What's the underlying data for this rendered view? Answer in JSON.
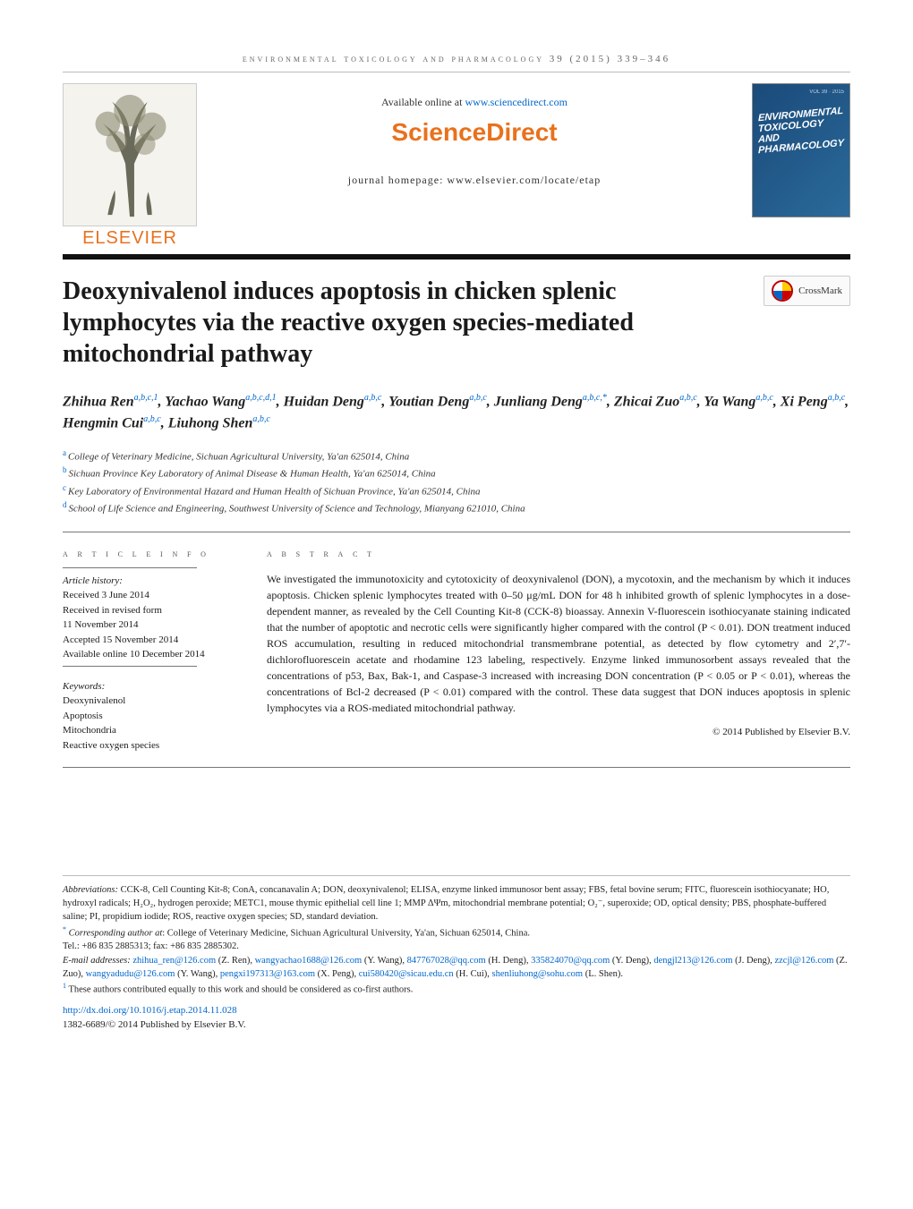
{
  "running_head": "environmental toxicology and pharmacology 39 (2015) 339–346",
  "header": {
    "available_prefix": "Available online at ",
    "available_link": "www.sciencedirect.com",
    "brand": "ScienceDirect",
    "journal_home": "journal homepage: www.elsevier.com/locate/etap",
    "elsevier": "ELSEVIER",
    "journal_cover_title": "ENVIRONMENTAL TOXICOLOGY AND PHARMACOLOGY"
  },
  "crossmark": "CrossMark",
  "title": "Deoxynivalenol induces apoptosis in chicken splenic lymphocytes via the reactive oxygen species-mediated mitochondrial pathway",
  "authors_html": "Zhihua Ren<sup>a,b,c,1</sup>, Yachao Wang<sup>a,b,c,d,1</sup>, Huidan Deng<sup>a,b,c</sup>, Youtian Deng<sup>a,b,c</sup>, Junliang Deng<sup>a,b,c,<span class='star'>*</span></sup>, Zhicai Zuo<sup>a,b,c</sup>, Ya Wang<sup>a,b,c</sup>, Xi Peng<sup>a,b,c</sup>, Hengmin Cui<sup>a,b,c</sup>, Liuhong Shen<sup>a,b,c</sup>",
  "affiliations": [
    {
      "label": "a",
      "text": "College of Veterinary Medicine, Sichuan Agricultural University, Ya'an 625014, China"
    },
    {
      "label": "b",
      "text": "Sichuan Province Key Laboratory of Animal Disease & Human Health, Ya'an 625014, China"
    },
    {
      "label": "c",
      "text": "Key Laboratory of Environmental Hazard and Human Health of Sichuan Province, Ya'an 625014, China"
    },
    {
      "label": "d",
      "text": "School of Life Science and Engineering, Southwest University of Science and Technology, Mianyang 621010, China"
    }
  ],
  "info": {
    "section_head": "a r t i c l e   i n f o",
    "history_head": "Article history:",
    "history": [
      "Received 3 June 2014",
      "Received in revised form",
      "11 November 2014",
      "Accepted 15 November 2014",
      "Available online 10 December 2014"
    ],
    "keywords_head": "Keywords:",
    "keywords": [
      "Deoxynivalenol",
      "Apoptosis",
      "Mitochondria",
      "Reactive oxygen species"
    ]
  },
  "abstract": {
    "section_head": "a b s t r a c t",
    "body": "We investigated the immunotoxicity and cytotoxicity of deoxynivalenol (DON), a mycotoxin, and the mechanism by which it induces apoptosis. Chicken splenic lymphocytes treated with 0–50 μg/mL DON for 48 h inhibited growth of splenic lymphocytes in a dose-dependent manner, as revealed by the Cell Counting Kit-8 (CCK-8) bioassay. Annexin V-fluorescein isothiocyanate staining indicated that the number of apoptotic and necrotic cells were significantly higher compared with the control (P < 0.01). DON treatment induced ROS accumulation, resulting in reduced mitochondrial transmembrane potential, as detected by flow cytometry and 2′,7′-dichlorofluorescein acetate and rhodamine 123 labeling, respectively. Enzyme linked immunosorbent assays revealed that the concentrations of p53, Bax, Bak-1, and Caspase-3 increased with increasing DON concentration (P < 0.05 or P < 0.01), whereas the concentrations of Bcl-2 decreased (P < 0.01) compared with the control. These data suggest that DON induces apoptosis in splenic lymphocytes via a ROS-mediated mitochondrial pathway.",
    "copyright": "© 2014 Published by Elsevier B.V."
  },
  "footer": {
    "abbrev_head": "Abbreviations:",
    "abbrev_body": " CCK-8, Cell Counting Kit-8; ConA, concanavalin A; DON, deoxynivalenol; ELISA, enzyme linked immunosor bent assay; FBS, fetal bovine serum; FITC, fluorescein isothiocyanate; HO, hydroxyl radicals; H₂O₂, hydrogen peroxide; METC1, mouse thymic epithelial cell line 1; MMP ΔΨm, mitochondrial membrane potential; O₂⁻, superoxide; OD, optical density; PBS, phosphate-buffered saline; PI, propidium iodide; ROS, reactive oxygen species; SD, standard deviation.",
    "corr_head": "Corresponding author at",
    "corr_body": ": College of Veterinary Medicine, Sichuan Agricultural University, Ya'an, Sichuan 625014, China.",
    "tel": "Tel.: +86 835 2885313; fax: +86 835 2885302.",
    "email_head": "E-mail addresses:",
    "emails": [
      {
        "addr": "zhihua_ren@126.com",
        "who": "(Z. Ren)"
      },
      {
        "addr": "wangyachao1688@126.com",
        "who": "(Y. Wang)"
      },
      {
        "addr": "847767028@qq.com",
        "who": "(H. Deng)"
      },
      {
        "addr": "335824070@qq.com",
        "who": "(Y. Deng)"
      },
      {
        "addr": "dengjl213@126.com",
        "who": "(J. Deng)"
      },
      {
        "addr": "zzcjl@126.com",
        "who": "(Z. Zuo)"
      },
      {
        "addr": "wangyadudu@126.com",
        "who": "(Y. Wang)"
      },
      {
        "addr": "pengxi197313@163.com",
        "who": "(X. Peng)"
      },
      {
        "addr": "cui580420@sicau.edu.cn",
        "who": "(H. Cui)"
      },
      {
        "addr": "shenliuhong@sohu.com",
        "who": "(L. Shen)"
      }
    ],
    "cofirst": "These authors contributed equally to this work and should be considered as co-first authors.",
    "doi": "http://dx.doi.org/10.1016/j.etap.2014.11.028",
    "issn": "1382-6689/© 2014 Published by Elsevier B.V."
  },
  "colors": {
    "link": "#0066cc",
    "orange": "#e9711c",
    "rule": "#777777"
  }
}
